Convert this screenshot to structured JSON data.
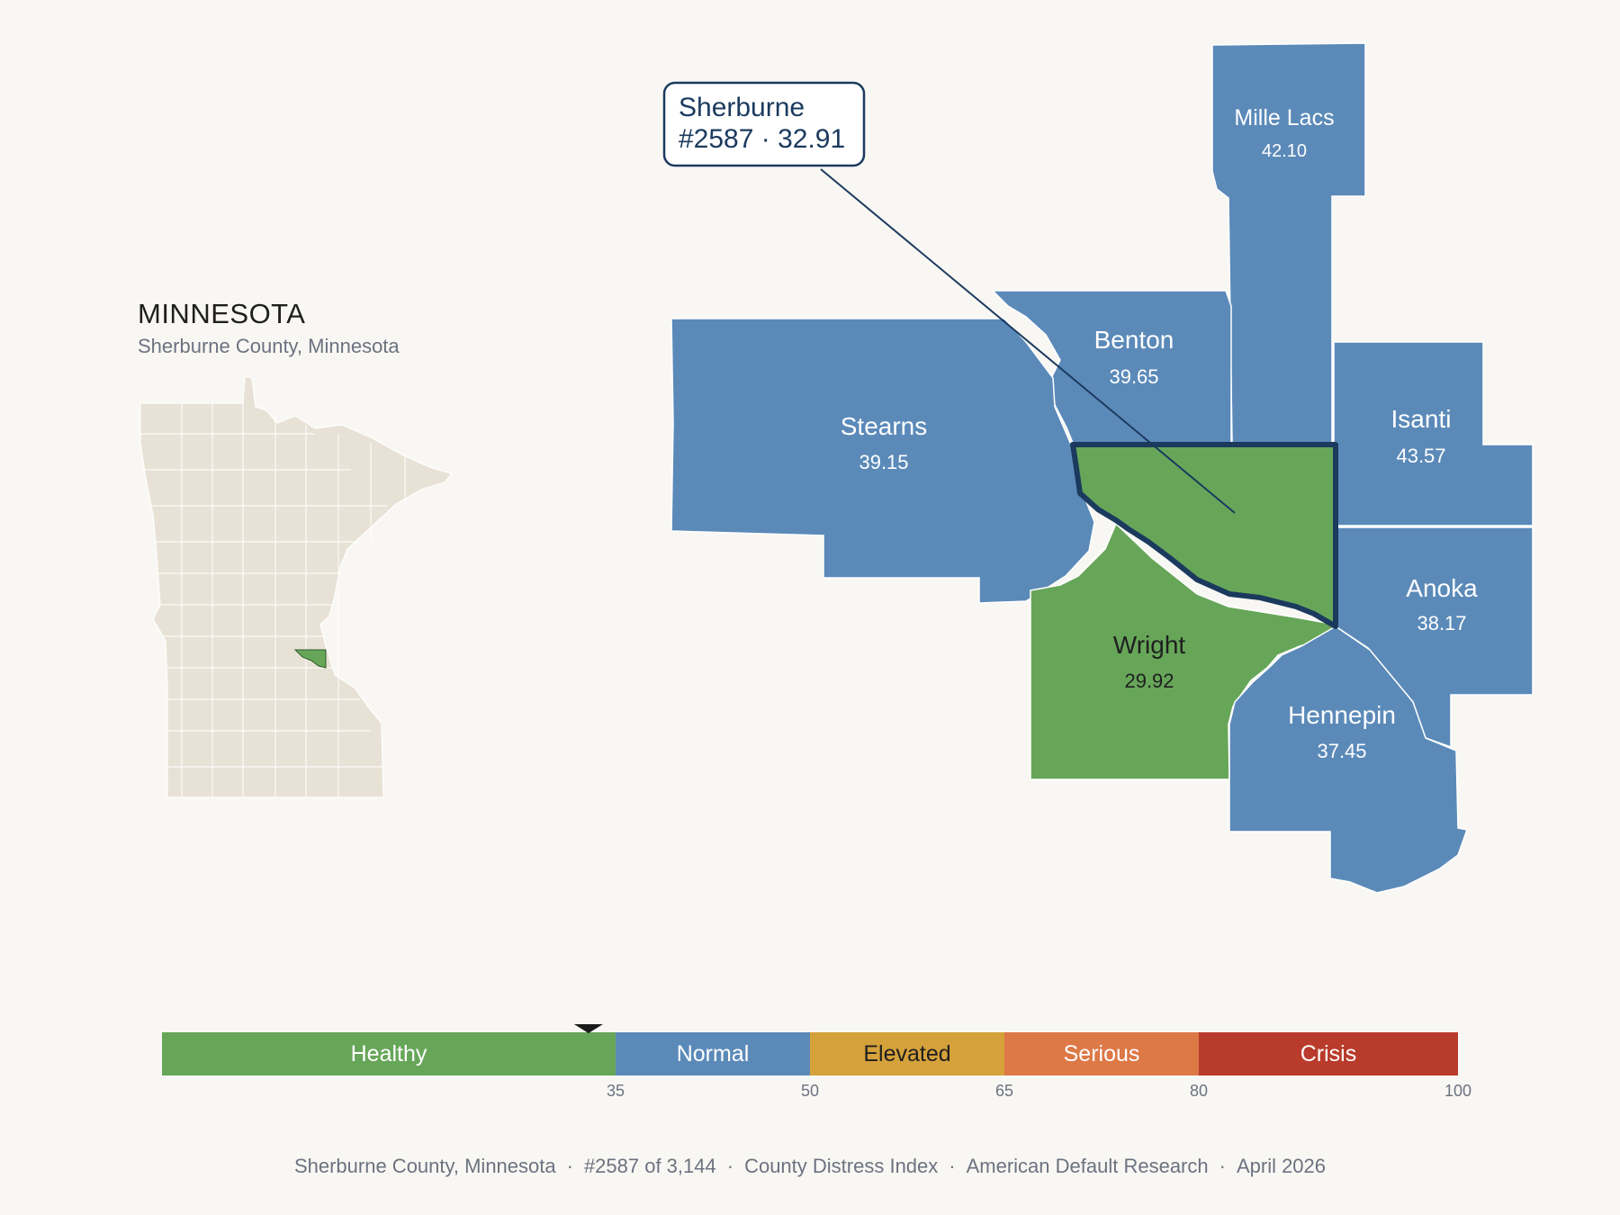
{
  "inset": {
    "state_title": "MINNESOTA",
    "subtitle": "Sherburne County, Minnesota"
  },
  "callout": {
    "name": "Sherburne",
    "rank_score": "#2587 · 32.91"
  },
  "counties": [
    {
      "name": "Mille Lacs",
      "score": "42.10",
      "category": "Normal"
    },
    {
      "name": "Benton",
      "score": "39.65",
      "category": "Normal"
    },
    {
      "name": "Stearns",
      "score": "39.15",
      "category": "Normal"
    },
    {
      "name": "Isanti",
      "score": "43.57",
      "category": "Normal"
    },
    {
      "name": "Anoka",
      "score": "38.17",
      "category": "Normal"
    },
    {
      "name": "Wright",
      "score": "29.92",
      "category": "Healthy"
    },
    {
      "name": "Hennepin",
      "score": "37.45",
      "category": "Normal"
    },
    {
      "name": "Sherburne",
      "score": "32.91",
      "category": "Healthy",
      "highlighted": true
    }
  ],
  "scale": {
    "bands": [
      {
        "label": "Healthy",
        "from": 0,
        "to": 35,
        "color": "#67a659"
      },
      {
        "label": "Normal",
        "from": 35,
        "to": 50,
        "color": "#5b8ab9"
      },
      {
        "label": "Elevated",
        "from": 50,
        "to": 65,
        "color": "#d5a13b"
      },
      {
        "label": "Serious",
        "from": 65,
        "to": 80,
        "color": "#dd7847"
      },
      {
        "label": "Crisis",
        "from": 80,
        "to": 100,
        "color": "#b93b2b"
      }
    ],
    "ticks": [
      "35",
      "50",
      "65",
      "80",
      "100"
    ],
    "marker_value": 32.91
  },
  "footer": {
    "location": "Sherburne County, Minnesota",
    "rank": "#2587 of 3,144",
    "index": "County Distress Index",
    "publisher": "American Default Research",
    "date": "April 2026"
  },
  "colors": {
    "normal": "#5b8ab9",
    "healthy": "#67a659",
    "highlight_outline": "#1b3a5e",
    "inset_land": "#e8e2d6",
    "background": "#f9f7f3"
  }
}
